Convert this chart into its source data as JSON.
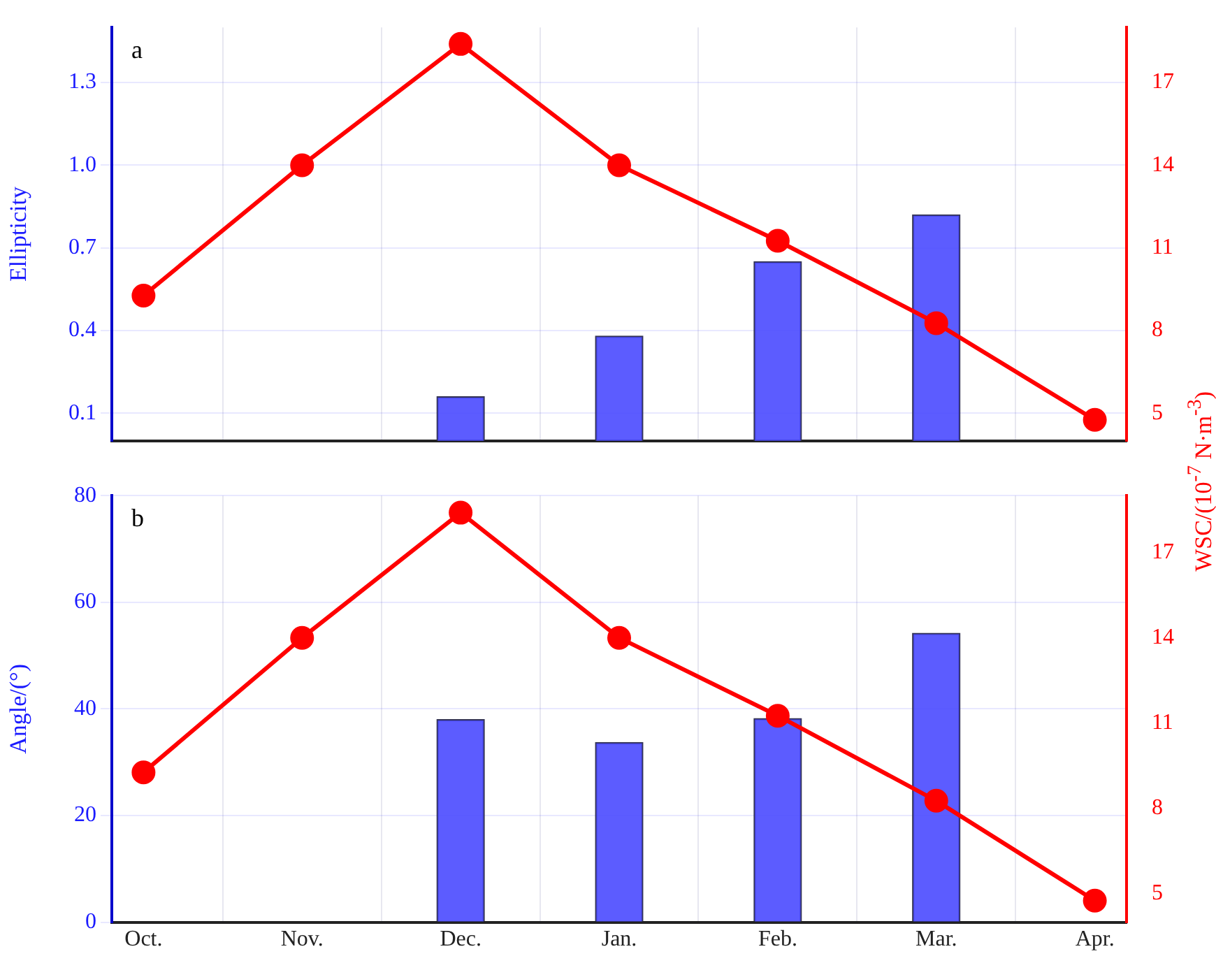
{
  "chart_data": [
    {
      "type": "bar",
      "categories": [
        null,
        null,
        null,
        null,
        null,
        null,
        null
      ],
      "series": [
        {
          "color": "#4a4aff",
          "values": [
            null,
            null,
            0.16,
            0.38,
            0.65,
            0.82,
            null
          ]
        },
        {
          "type": "line",
          "axis": "y2",
          "color": "#ff0000",
          "values": [
            9.27,
            14.0,
            18.4,
            14.0,
            11.26,
            8.27,
            4.76
          ]
        }
      ],
      "ylabel": "Ellipticity",
      "y2label": "WSC/(10$^{-7}$ N·m$^{-3}$)",
      "ylim": [
        0,
        1.5
      ],
      "yticks": [
        0.1,
        0.4,
        0.7,
        {
          "value": 1,
          "label": "1.0"
        },
        1.3
      ],
      "y2lim": [
        4,
        19
      ],
      "y2ticks": [
        5,
        8,
        11,
        14,
        17
      ],
      "grid": true,
      "marker": "circle",
      "tick_labels": "y",
      "annotations": [
        "a"
      ]
    },
    {
      "type": "bar",
      "categories": [
        "Oct.",
        "Nov.",
        "Dec.",
        "Jan.",
        "Feb.",
        "Mar.",
        "Apr."
      ],
      "series": [
        {
          "color": "#4a4aff",
          "values": [
            null,
            null,
            38,
            33.7,
            38.2,
            54.2,
            null
          ]
        },
        {
          "type": "line",
          "axis": "y2",
          "color": "#ff0000",
          "values": [
            9.27,
            14.0,
            18.4,
            14.0,
            11.26,
            8.27,
            4.76
          ]
        }
      ],
      "ylabel": "Angle/(°)",
      "ylim": [
        0,
        80
      ],
      "yticks": [
        0,
        20,
        40,
        60,
        80
      ],
      "y2lim": [
        4,
        19
      ],
      "y2ticks": [
        5,
        8,
        11,
        14,
        17
      ],
      "grid": true,
      "marker": "circle",
      "annotations": [
        "b"
      ]
    }
  ]
}
